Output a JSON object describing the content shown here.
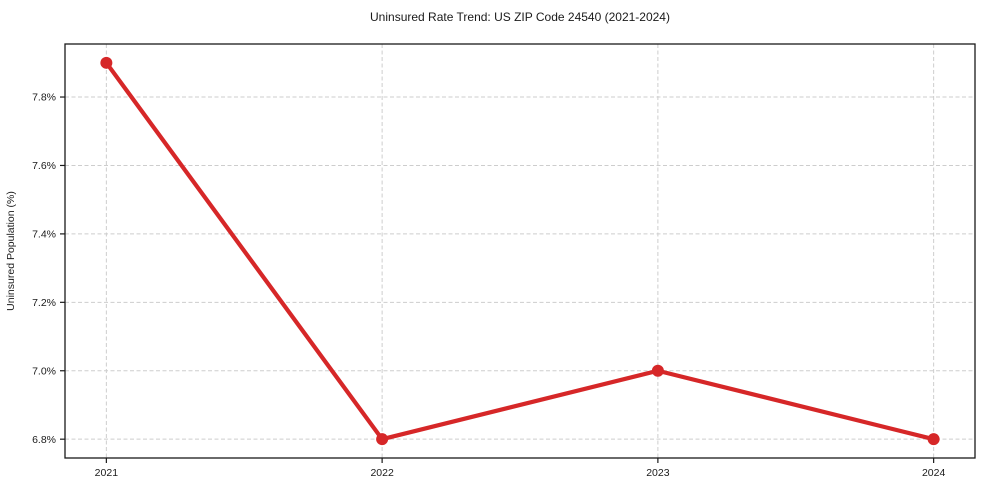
{
  "chart_data": {
    "type": "line",
    "title": "Uninsured Rate Trend: US ZIP Code 24540 (2021-2024)",
    "xlabel": "",
    "ylabel": "Uninsured Population (%)",
    "x": [
      2021,
      2022,
      2023,
      2024
    ],
    "values": [
      7.9,
      6.8,
      7.0,
      6.8
    ],
    "x_tick_labels": [
      "2021",
      "2022",
      "2023",
      "2024"
    ],
    "y_ticks": [
      6.8,
      7.0,
      7.2,
      7.4,
      7.6,
      7.8
    ],
    "y_tick_labels": [
      "6.8%",
      "7.0%",
      "7.2%",
      "7.4%",
      "7.6%",
      "7.8%"
    ],
    "xlim": [
      2020.85,
      2024.15
    ],
    "ylim": [
      6.745,
      7.955
    ],
    "grid": true,
    "legend": "none",
    "line_color": "#d62728",
    "marker_color": "#d62728",
    "grid_color": "#cdcdcd",
    "axis_color": "#1a1a1a"
  }
}
